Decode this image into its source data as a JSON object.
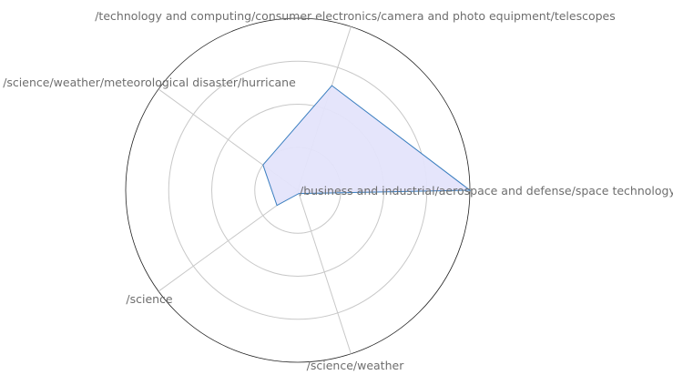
{
  "chart_data": {
    "type": "radar",
    "title": "",
    "axes": [
      "/business and industrial/aerospace and defense/space technology",
      "/technology and computing/consumer electronics/camera and photo equipment/telescopes",
      "/science/weather/meteorological disaster/hurricane",
      "/science",
      "/science/weather"
    ],
    "series": [
      {
        "values": [
          1.0,
          0.64,
          0.25,
          0.15,
          0.02
        ]
      }
    ],
    "rlim": [
      0,
      1.0
    ],
    "rings": [
      0.25,
      0.5,
      0.75,
      1.0
    ],
    "grid": true,
    "colors": {
      "fill": "#e4e4fb",
      "stroke": "#3a7ebf",
      "grid": "#c8c8c8",
      "text": "#6e6e6e"
    }
  }
}
